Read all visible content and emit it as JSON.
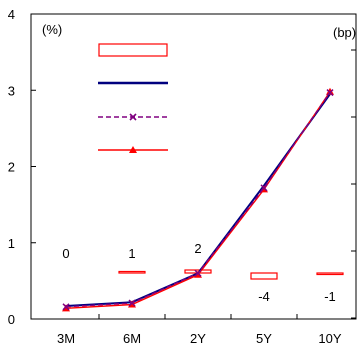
{
  "chart_data": {
    "type": "line",
    "left_unit": "(%)",
    "right_unit": "(bp)",
    "categories": [
      "3M",
      "6M",
      "2Y",
      "5Y",
      "10Y"
    ],
    "y_left_ticks": [
      "0",
      "1",
      "2",
      "3",
      "4"
    ],
    "ylim_left": [
      0,
      4
    ],
    "series": [
      {
        "values": [
          0.17,
          0.22,
          0.6,
          1.75,
          2.95
        ],
        "color": "#00007f",
        "style": "solid"
      },
      {
        "values": [
          0.14,
          0.19,
          0.58,
          1.7,
          2.98
        ],
        "color": "#ff0000",
        "style": "solid",
        "marker": "triangle"
      },
      {
        "values": [
          0.16,
          0.21,
          0.6,
          1.72,
          2.97
        ],
        "color": "#800080",
        "style": "dashed",
        "marker": "x"
      }
    ],
    "bar_values": [
      0,
      1,
      2,
      -4,
      -1
    ],
    "bar_value_labels": [
      "0",
      "1",
      "2",
      "-4",
      "-1"
    ],
    "bar_color": "#ff0000",
    "legend_placement": "top-left",
    "grid": false
  }
}
